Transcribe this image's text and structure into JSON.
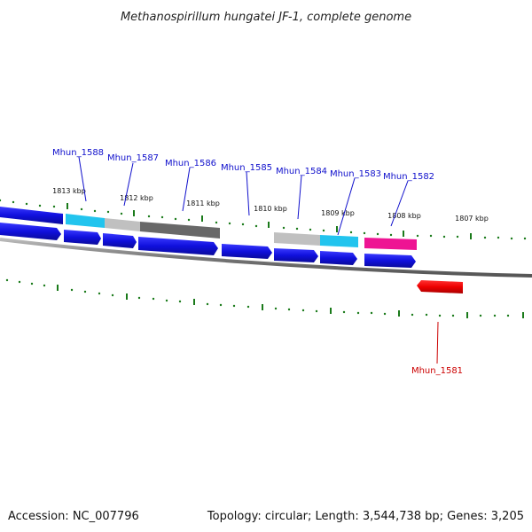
{
  "title": "Methanospirillum hungatei JF-1, complete genome",
  "footer": {
    "accession": "Accession: NC_007796",
    "summary": "Topology: circular; Length: 3,544,738 bp; Genes: 3,205"
  },
  "colors": {
    "forward_gene": "#1010dd",
    "reverse_gene": "#ee0000",
    "backbone": "#888888",
    "tick": "#1a7a1a",
    "cyan": "#22c4ee",
    "light_gray": "#c0c0c0",
    "dark_gray": "#686868",
    "magenta": "#ee1493",
    "label_forward": "#1010cc",
    "label_reverse": "#cc0000"
  },
  "tick_labels": [
    "1813 kbp",
    "1812 kbp",
    "1811 kbp",
    "1810 kbp",
    "1809 kbp",
    "1808 kbp",
    "1807 kbp"
  ],
  "gene_labels": [
    {
      "text": "Mhun_1588",
      "strand": "forward"
    },
    {
      "text": "Mhun_1587",
      "strand": "forward"
    },
    {
      "text": "Mhun_1586",
      "strand": "forward"
    },
    {
      "text": "Mhun_1585",
      "strand": "forward"
    },
    {
      "text": "Mhun_1584",
      "strand": "forward"
    },
    {
      "text": "Mhun_1583",
      "strand": "forward"
    },
    {
      "text": "Mhun_1582",
      "strand": "forward"
    },
    {
      "text": "Mhun_1581",
      "strand": "reverse"
    }
  ]
}
